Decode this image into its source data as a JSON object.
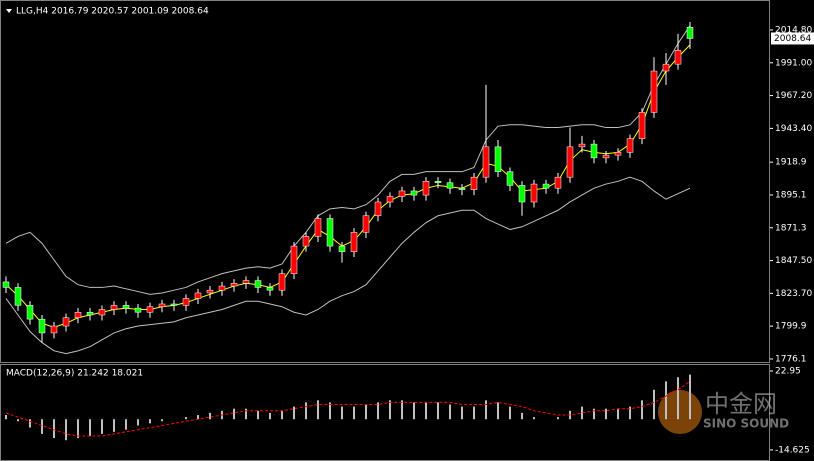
{
  "chart_data": [
    {
      "type": "candlestick",
      "title": "LLG,H4  2016.79 2020.57 2001.09 2008.64",
      "up_color": "#ff0000",
      "down_color": "#00ff00",
      "wick_color": "#ffffff",
      "open": [
        1832,
        1828,
        1815,
        1805,
        1795,
        1800,
        1806,
        1810,
        1808,
        1812,
        1815,
        1813,
        1810,
        1814,
        1816,
        1815,
        1820,
        1824,
        1826,
        1829,
        1831,
        1833,
        1828,
        1826,
        1838,
        1858,
        1865,
        1878,
        1858,
        1854,
        1868,
        1880,
        1890,
        1894,
        1898,
        1895,
        1905,
        1904,
        1900,
        1899,
        1908,
        1930,
        1912,
        1902,
        1890,
        1903,
        1900,
        1908,
        1930,
        1932,
        1922,
        1924,
        1926,
        1936,
        1955,
        1985,
        1990,
        2016.79
      ],
      "high": [
        1836,
        1831,
        1818,
        1808,
        1803,
        1809,
        1813,
        1813,
        1815,
        1818,
        1818,
        1816,
        1817,
        1819,
        1819,
        1823,
        1827,
        1829,
        1832,
        1834,
        1836,
        1836,
        1831,
        1841,
        1861,
        1868,
        1881,
        1881,
        1861,
        1871,
        1883,
        1893,
        1897,
        1901,
        1901,
        1908,
        1908,
        1907,
        1903,
        1911,
        1975,
        1935,
        1915,
        1905,
        1906,
        1906,
        1911,
        1944,
        1938,
        1935,
        1927,
        1929,
        1939,
        1958,
        1995,
        1998,
        2012,
        2020.57
      ],
      "low": [
        1824,
        1811,
        1801,
        1788,
        1791,
        1796,
        1802,
        1804,
        1804,
        1808,
        1809,
        1806,
        1806,
        1810,
        1811,
        1811,
        1816,
        1820,
        1822,
        1825,
        1827,
        1824,
        1822,
        1822,
        1834,
        1854,
        1861,
        1854,
        1846,
        1850,
        1864,
        1876,
        1886,
        1890,
        1891,
        1891,
        1900,
        1896,
        1895,
        1895,
        1904,
        1908,
        1898,
        1880,
        1886,
        1896,
        1896,
        1904,
        1926,
        1918,
        1918,
        1920,
        1922,
        1932,
        1951,
        1975,
        1986,
        2001.09
      ],
      "close": [
        1828,
        1815,
        1805,
        1795,
        1800,
        1806,
        1810,
        1808,
        1812,
        1815,
        1813,
        1810,
        1814,
        1816,
        1815,
        1820,
        1824,
        1826,
        1829,
        1831,
        1833,
        1828,
        1826,
        1838,
        1858,
        1865,
        1878,
        1858,
        1854,
        1868,
        1880,
        1890,
        1894,
        1898,
        1895,
        1905,
        1904,
        1900,
        1899,
        1908,
        1930,
        1912,
        1902,
        1890,
        1903,
        1900,
        1908,
        1930,
        1932,
        1922,
        1924,
        1926,
        1936,
        1955,
        1985,
        1990,
        2000,
        2008.64
      ],
      "overlays": [
        {
          "color": "#c0c0c0",
          "values": [
            1860,
            1865,
            1868,
            1860,
            1848,
            1836,
            1830,
            1828,
            1828,
            1829,
            1827,
            1825,
            1823,
            1824,
            1826,
            1828,
            1832,
            1835,
            1838,
            1840,
            1842,
            1843,
            1842,
            1845,
            1858,
            1868,
            1880,
            1885,
            1886,
            1885,
            1888,
            1895,
            1905,
            1910,
            1910,
            1912,
            1912,
            1912,
            1912,
            1915,
            1935,
            1945,
            1946,
            1946,
            1945,
            1944,
            1944,
            1945,
            1946,
            1946,
            1944,
            1944,
            1946,
            1955,
            1975,
            1990,
            2005,
            2018
          ]
        },
        {
          "color": "#c0c0c0",
          "values": [
            1820,
            1808,
            1796,
            1788,
            1782,
            1780,
            1782,
            1785,
            1790,
            1795,
            1798,
            1800,
            1801,
            1802,
            1803,
            1806,
            1808,
            1810,
            1812,
            1815,
            1818,
            1818,
            1816,
            1814,
            1810,
            1808,
            1812,
            1818,
            1822,
            1825,
            1830,
            1840,
            1850,
            1860,
            1868,
            1875,
            1880,
            1882,
            1884,
            1884,
            1878,
            1874,
            1870,
            1872,
            1876,
            1880,
            1884,
            1890,
            1895,
            1900,
            1903,
            1905,
            1908,
            1905,
            1898,
            1892,
            1896,
            1900
          ]
        },
        {
          "color": "#ffff00",
          "values": [
            1830,
            1822,
            1812,
            1802,
            1799,
            1802,
            1806,
            1808,
            1810,
            1812,
            1813,
            1812,
            1812,
            1814,
            1815,
            1817,
            1820,
            1823,
            1826,
            1829,
            1831,
            1830,
            1828,
            1832,
            1845,
            1858,
            1870,
            1865,
            1858,
            1862,
            1872,
            1884,
            1891,
            1895,
            1896,
            1900,
            1902,
            1901,
            1900,
            1904,
            1918,
            1916,
            1908,
            1898,
            1899,
            1900,
            1905,
            1920,
            1928,
            1926,
            1925,
            1926,
            1932,
            1946,
            1970,
            1985,
            1995,
            2004
          ]
        }
      ],
      "ylim": [
        1773.9,
        2035.1
      ],
      "yticks": [
        {
          "value": 2014.8,
          "label": "2014.80"
        },
        {
          "value": 1991,
          "label": "1991.00"
        },
        {
          "value": 1967.2,
          "label": "1967.20"
        },
        {
          "value": 1943.4,
          "label": "1943.40"
        },
        1918.9,
        1895.1,
        1871.3,
        {
          "value": 1847.5,
          "label": "1847.50"
        },
        {
          "value": 1823.7,
          "label": "1823.70"
        },
        1799.9,
        1776.1
      ],
      "last_price": 2008.64
    },
    {
      "type": "macd",
      "title": "MACD(12,26,9) 21.242 18.021",
      "histogram_color": "#c0c0c0",
      "signal_color": "#ff0000",
      "histogram": [
        2,
        -1,
        -4,
        -7,
        -9,
        -10,
        -9,
        -8,
        -7,
        -6,
        -5,
        -3,
        -2,
        -1,
        0,
        1,
        2,
        3,
        4,
        5,
        5,
        4,
        3,
        4,
        6,
        8,
        9,
        8,
        6,
        6,
        7,
        8,
        9,
        9,
        8,
        8,
        8,
        7,
        6,
        6,
        9,
        8,
        6,
        3,
        1,
        0,
        1,
        4,
        6,
        5,
        5,
        5,
        6,
        9,
        14,
        18,
        20,
        21.242
      ],
      "signal": [
        3,
        1,
        -1,
        -3,
        -5,
        -7,
        -8,
        -8,
        -8,
        -7,
        -6,
        -5,
        -4,
        -3,
        -2,
        -1,
        0,
        1,
        2,
        3,
        4,
        4,
        4,
        4,
        5,
        6,
        7,
        7,
        7,
        7,
        7,
        7,
        8,
        8,
        8,
        8,
        8,
        8,
        7,
        7,
        7,
        8,
        7,
        6,
        4,
        3,
        2,
        2,
        3,
        4,
        4,
        5,
        5,
        6,
        8,
        11,
        14,
        18.021
      ],
      "ylim": [
        -19.9,
        25.8
      ],
      "yticks": [
        22.95,
        -14.625
      ]
    }
  ],
  "watermark": {
    "logo": "中金网",
    "brand": "SINO SOUND"
  }
}
